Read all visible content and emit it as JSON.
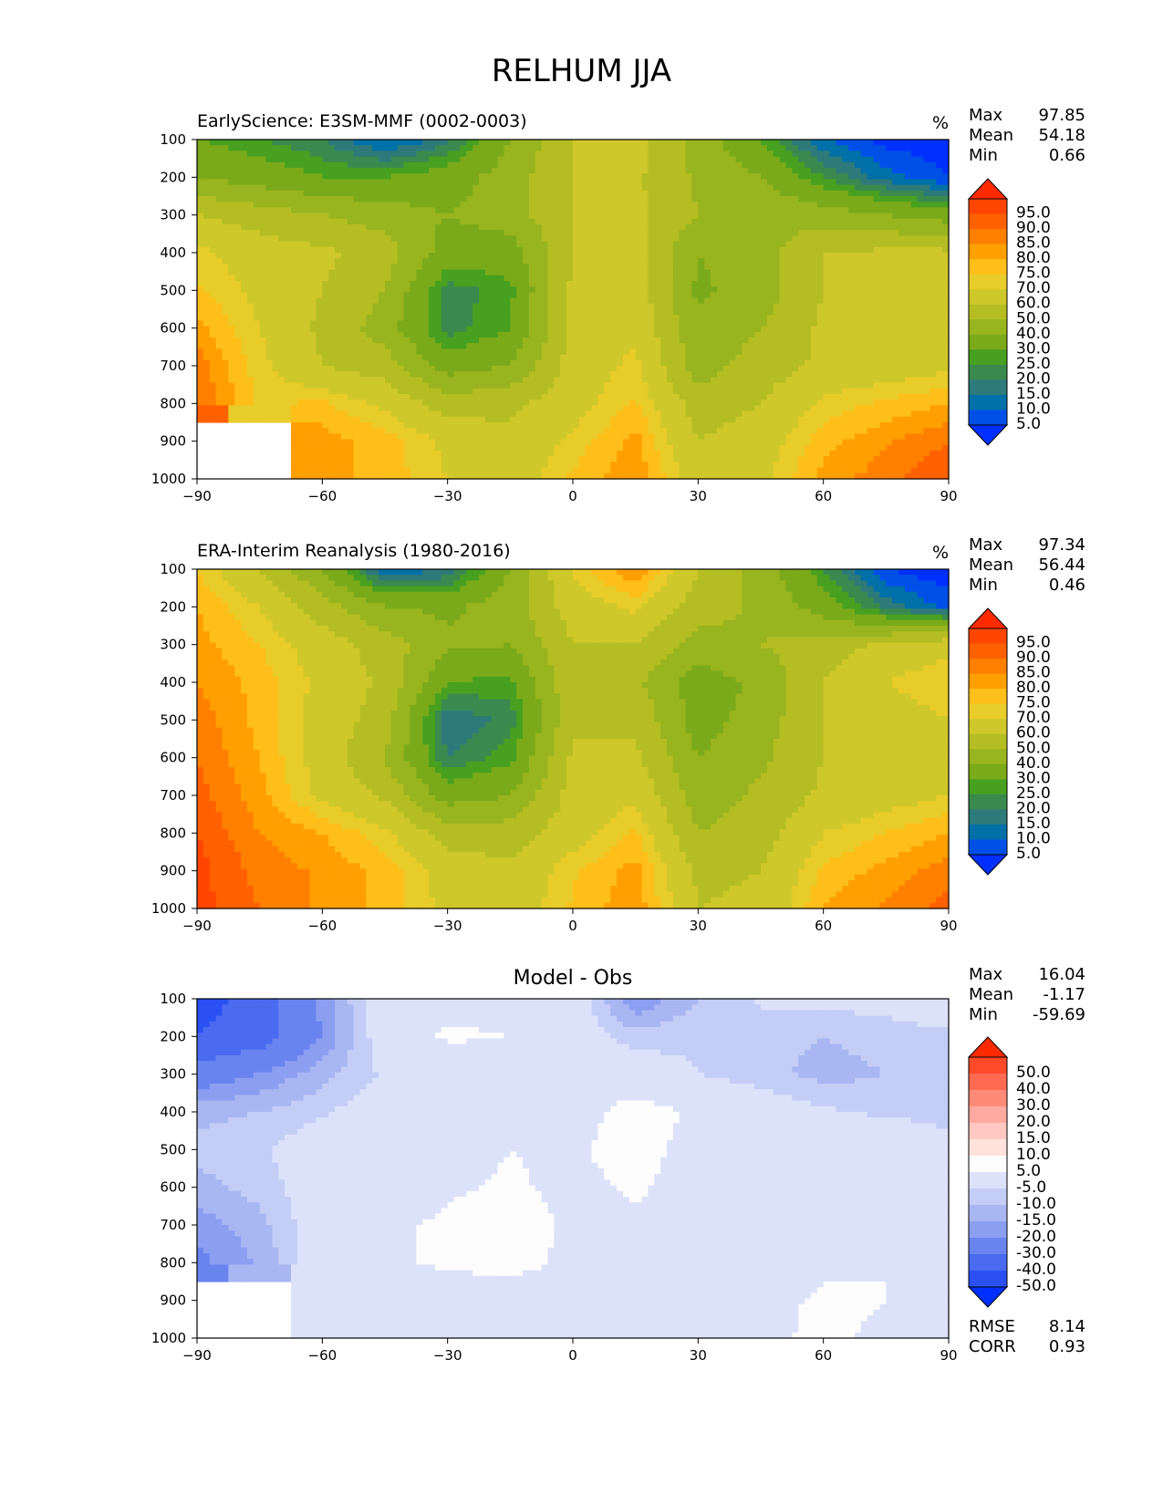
{
  "title": "RELHUM JJA",
  "unit": "%",
  "panels": [
    {
      "title": "EarlyScience: E3SM-MMF (0002-0003)",
      "title_pos": "left",
      "stats": [
        {
          "label": "Max",
          "value": "97.85"
        },
        {
          "label": "Mean",
          "value": "54.18"
        },
        {
          "label": "Min",
          "value": "0.66"
        }
      ],
      "colorbar": "relhum"
    },
    {
      "title": "ERA-Interim Reanalysis (1980-2016)",
      "title_pos": "left",
      "stats": [
        {
          "label": "Max",
          "value": "97.34"
        },
        {
          "label": "Mean",
          "value": "56.44"
        },
        {
          "label": "Min",
          "value": "0.46"
        }
      ],
      "colorbar": "relhum"
    },
    {
      "title": "Model - Obs",
      "title_pos": "center",
      "stats": [
        {
          "label": "Max",
          "value": "16.04"
        },
        {
          "label": "Mean",
          "value": "-1.17"
        },
        {
          "label": "Min",
          "value": "-59.69"
        }
      ],
      "bottom_stats": [
        {
          "label": "RMSE",
          "value": "8.14"
        },
        {
          "label": "CORR",
          "value": "0.93"
        }
      ],
      "colorbar": "diff"
    }
  ],
  "colorbars": {
    "relhum": {
      "levels": [
        "95.0",
        "90.0",
        "85.0",
        "80.0",
        "75.0",
        "70.0",
        "60.0",
        "50.0",
        "40.0",
        "30.0",
        "25.0",
        "20.0",
        "15.0",
        "10.0",
        "5.0"
      ],
      "colors": [
        "#ff2a00",
        "#ff4500",
        "#ff6000",
        "#ff8000",
        "#ff9f00",
        "#ffbf1a",
        "#e8cc2a",
        "#cfc82a",
        "#b4be22",
        "#98b41e",
        "#7aaa1a",
        "#48a020",
        "#3a8a50",
        "#2e7a7a",
        "#0070a8",
        "#0050e8",
        "#0030ff"
      ]
    },
    "diff": {
      "levels": [
        "50.0",
        "40.0",
        "30.0",
        "20.0",
        "15.0",
        "10.0",
        "5.0",
        "-5.0",
        "-10.0",
        "-15.0",
        "-20.0",
        "-30.0",
        "-40.0",
        "-50.0"
      ],
      "colors": [
        "#ff2a00",
        "#ff4a2a",
        "#ff6a50",
        "#ff8a78",
        "#ffaaa0",
        "#ffc8c0",
        "#ffe2dc",
        "#fdfdfd",
        "#dce2fa",
        "#c4cdf6",
        "#a8b6f2",
        "#8c9ef0",
        "#6a84ef",
        "#4a6af0",
        "#2a50f4",
        "#0030ff"
      ]
    }
  },
  "chart_data": [
    {
      "type": "heatmap",
      "title": "EarlyScience: E3SM-MMF (0002-0003)",
      "unit": "%",
      "x": [
        -90,
        -60,
        -30,
        0,
        30,
        60,
        90
      ],
      "xlim": [
        -90,
        90
      ],
      "y": [
        100,
        200,
        300,
        400,
        500,
        600,
        700,
        800,
        900,
        1000
      ],
      "ylim": [
        1000,
        100
      ],
      "ticks_x": [
        "−90",
        "−60",
        "−30",
        "0",
        "30",
        "60",
        "90"
      ],
      "ticks_y": [
        "100",
        "200",
        "300",
        "400",
        "500",
        "600",
        "700",
        "800",
        "900",
        "1000"
      ],
      "values": [
        [
          30,
          25,
          20,
          8,
          18,
          40,
          60,
          65,
          45,
          30,
          10,
          3,
          1
        ],
        [
          40,
          35,
          30,
          30,
          35,
          45,
          60,
          62,
          48,
          40,
          25,
          12,
          5
        ],
        [
          60,
          55,
          50,
          45,
          40,
          45,
          60,
          62,
          50,
          48,
          45,
          40,
          35
        ],
        [
          72,
          65,
          62,
          55,
          35,
          35,
          60,
          65,
          40,
          45,
          60,
          62,
          62
        ],
        [
          76,
          68,
          60,
          50,
          22,
          28,
          62,
          66,
          38,
          45,
          60,
          62,
          62
        ],
        [
          82,
          70,
          58,
          45,
          22,
          30,
          62,
          68,
          42,
          50,
          62,
          62,
          62
        ],
        [
          88,
          72,
          60,
          55,
          35,
          40,
          65,
          72,
          45,
          55,
          62,
          65,
          68
        ],
        [
          90,
          74,
          76,
          68,
          55,
          58,
          66,
          76,
          55,
          60,
          72,
          76,
          80
        ],
        [
          null,
          null,
          82,
          78,
          68,
          62,
          72,
          82,
          60,
          65,
          78,
          84,
          90
        ],
        [
          null,
          null,
          82,
          78,
          70,
          65,
          76,
          84,
          65,
          68,
          82,
          88,
          95
        ]
      ]
    },
    {
      "type": "heatmap",
      "title": "ERA-Interim Reanalysis (1980-2016)",
      "unit": "%",
      "x": [
        -90,
        -60,
        -30,
        0,
        30,
        60,
        90
      ],
      "xlim": [
        -90,
        90
      ],
      "y": [
        100,
        200,
        300,
        400,
        500,
        600,
        700,
        800,
        900,
        1000
      ],
      "ylim": [
        1000,
        100
      ],
      "ticks_x": [
        "−90",
        "−60",
        "−30",
        "0",
        "30",
        "60",
        "90"
      ],
      "ticks_y": [
        "100",
        "200",
        "300",
        "400",
        "500",
        "600",
        "700",
        "800",
        "900",
        "1000"
      ],
      "values": [
        [
          75,
          60,
          40,
          10,
          15,
          40,
          72,
          85,
          60,
          45,
          25,
          5,
          1
        ],
        [
          80,
          70,
          55,
          40,
          38,
          45,
          65,
          72,
          55,
          48,
          35,
          18,
          8
        ],
        [
          82,
          75,
          65,
          55,
          42,
          40,
          60,
          60,
          45,
          50,
          55,
          62,
          68
        ],
        [
          85,
          78,
          68,
          58,
          30,
          28,
          58,
          52,
          35,
          42,
          60,
          70,
          75
        ],
        [
          88,
          78,
          66,
          55,
          15,
          22,
          58,
          58,
          35,
          45,
          60,
          65,
          70
        ],
        [
          90,
          80,
          66,
          50,
          20,
          28,
          62,
          62,
          40,
          48,
          60,
          65,
          68
        ],
        [
          92,
          82,
          68,
          58,
          35,
          40,
          64,
          68,
          45,
          52,
          62,
          66,
          70
        ],
        [
          95,
          85,
          80,
          72,
          55,
          55,
          66,
          76,
          50,
          55,
          70,
          75,
          80
        ],
        [
          97,
          88,
          84,
          78,
          66,
          62,
          74,
          82,
          58,
          60,
          76,
          82,
          88
        ],
        [
          97,
          90,
          84,
          78,
          68,
          64,
          76,
          84,
          60,
          62,
          80,
          86,
          92
        ]
      ]
    },
    {
      "type": "heatmap",
      "title": "Model - Obs",
      "x": [
        -90,
        -60,
        -30,
        0,
        30,
        60,
        90
      ],
      "xlim": [
        -90,
        90
      ],
      "y": [
        100,
        200,
        300,
        400,
        500,
        600,
        700,
        800,
        900,
        1000
      ],
      "ylim": [
        1000,
        100
      ],
      "ticks_x": [
        "−90",
        "−60",
        "−30",
        "0",
        "30",
        "60",
        "90"
      ],
      "ticks_y": [
        "100",
        "200",
        "300",
        "400",
        "500",
        "600",
        "700",
        "800",
        "900",
        "1000"
      ],
      "values": [
        [
          -45,
          -35,
          -18,
          0,
          2,
          3,
          0,
          -20,
          -10,
          -4,
          -3,
          -2,
          0
        ],
        [
          -40,
          -35,
          -20,
          0,
          6,
          5,
          0,
          -8,
          -6,
          -8,
          -10,
          -8,
          -6
        ],
        [
          -25,
          -20,
          -12,
          -4,
          0,
          0,
          0,
          0,
          -5,
          -8,
          -12,
          -10,
          -8
        ],
        [
          -12,
          -10,
          -6,
          0,
          0,
          0,
          2,
          8,
          4,
          0,
          -4,
          -6,
          -6
        ],
        [
          -8,
          -6,
          0,
          0,
          2,
          5,
          4,
          8,
          2,
          0,
          0,
          0,
          -4
        ],
        [
          -12,
          -8,
          0,
          0,
          4,
          6,
          3,
          6,
          2,
          0,
          0,
          0,
          -2
        ],
        [
          -18,
          -12,
          0,
          4,
          6,
          10,
          3,
          4,
          0,
          0,
          0,
          0,
          0
        ],
        [
          -22,
          -14,
          0,
          4,
          6,
          8,
          3,
          0,
          0,
          0,
          4,
          5,
          2
        ],
        [
          null,
          null,
          0,
          2,
          0,
          0,
          0,
          0,
          2,
          3,
          6,
          5,
          3
        ],
        [
          null,
          null,
          0,
          0,
          0,
          0,
          0,
          0,
          4,
          4,
          6,
          4,
          2
        ]
      ],
      "rmse": 8.14,
      "corr": 0.93
    }
  ]
}
